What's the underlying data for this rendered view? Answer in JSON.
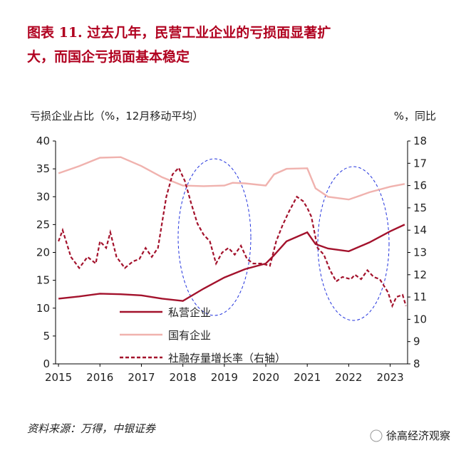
{
  "chart_data": {
    "type": "line",
    "title_line1": "图表 11. 过去几年，民营工业企业的亏损面显著扩",
    "title_line2": "大，而国企亏损面基本稳定",
    "y_label": "亏损企业占比（%，12月移动平均）",
    "y2_label": "%，同比",
    "source": "资料来源：万得，中银证券",
    "watermark": "徐高经济观察",
    "xlim": [
      2014.93,
      2023.42
    ],
    "xticks": [
      2015,
      2016,
      2017,
      2018,
      2019,
      2020,
      2021,
      2022,
      2023
    ],
    "ylim": [
      0,
      40
    ],
    "yticks": [
      0,
      5,
      10,
      15,
      20,
      25,
      30,
      35,
      40
    ],
    "y2lim": [
      8,
      18
    ],
    "y2ticks": [
      8,
      9,
      10,
      11,
      12,
      13,
      14,
      15,
      16,
      17,
      18
    ],
    "series": [
      {
        "name": "私营企业",
        "color": "#a3122c",
        "dash": false,
        "x": [
          2015,
          2015.5,
          2016,
          2016.5,
          2017,
          2017.5,
          2018,
          2018.5,
          2019,
          2019.5,
          2020,
          2020.2,
          2020.5,
          2021,
          2021.2,
          2021.5,
          2022,
          2022.5,
          2023,
          2023.35
        ],
        "values": [
          11.7,
          12.1,
          12.6,
          12.5,
          12.3,
          11.7,
          11.3,
          13.5,
          15.5,
          17.0,
          18.0,
          19.5,
          22.0,
          23.6,
          21.5,
          20.7,
          20.2,
          21.8,
          23.8,
          25.0
        ]
      },
      {
        "name": "国有企业",
        "color": "#f0b2ae",
        "dash": false,
        "x": [
          2015,
          2015.5,
          2016,
          2016.5,
          2017,
          2017.5,
          2018,
          2018.5,
          2019,
          2019.2,
          2019.5,
          2020,
          2020.2,
          2020.5,
          2021,
          2021.2,
          2021.5,
          2022,
          2022.2,
          2022.5,
          2023,
          2023.35
        ],
        "values": [
          34.2,
          35.5,
          37.0,
          37.1,
          35.5,
          33.5,
          32.0,
          31.9,
          32.0,
          32.5,
          32.4,
          32.0,
          34.0,
          35.0,
          35.1,
          31.5,
          30.0,
          29.5,
          30.0,
          30.8,
          31.8,
          32.3
        ]
      },
      {
        "name": "社融存量增长率（右轴）",
        "color": "#a3122c",
        "dash": true,
        "axis": "y2",
        "x": [
          2015,
          2015.1,
          2015.3,
          2015.5,
          2015.7,
          2015.9,
          2016,
          2016.15,
          2016.25,
          2016.4,
          2016.6,
          2016.8,
          2016.95,
          2017.1,
          2017.25,
          2017.4,
          2017.6,
          2017.75,
          2017.9,
          2018.05,
          2018.2,
          2018.35,
          2018.5,
          2018.65,
          2018.8,
          2018.95,
          2019.1,
          2019.25,
          2019.4,
          2019.55,
          2019.7,
          2019.9,
          2020.1,
          2020.25,
          2020.4,
          2020.55,
          2020.75,
          2020.9,
          2021,
          2021.1,
          2021.25,
          2021.4,
          2021.55,
          2021.7,
          2021.85,
          2022.05,
          2022.15,
          2022.3,
          2022.45,
          2022.6,
          2022.75,
          2022.95,
          2023.05,
          2023.15,
          2023.3,
          2023.38
        ],
        "values": [
          13.5,
          14.0,
          12.8,
          12.3,
          12.8,
          12.5,
          13.5,
          13.2,
          13.9,
          12.8,
          12.3,
          12.6,
          12.7,
          13.2,
          12.8,
          13.2,
          15.5,
          16.5,
          16.8,
          16.2,
          15.2,
          14.3,
          13.8,
          13.5,
          12.5,
          13.0,
          13.2,
          12.9,
          13.3,
          12.7,
          12.5,
          12.5,
          12.4,
          13.5,
          14.2,
          14.8,
          15.5,
          15.3,
          15.0,
          14.6,
          13.2,
          12.9,
          12.2,
          11.7,
          11.9,
          11.8,
          12.0,
          11.8,
          12.2,
          11.9,
          11.8,
          11.2,
          10.6,
          11.0,
          11.1,
          10.6
        ]
      }
    ]
  }
}
